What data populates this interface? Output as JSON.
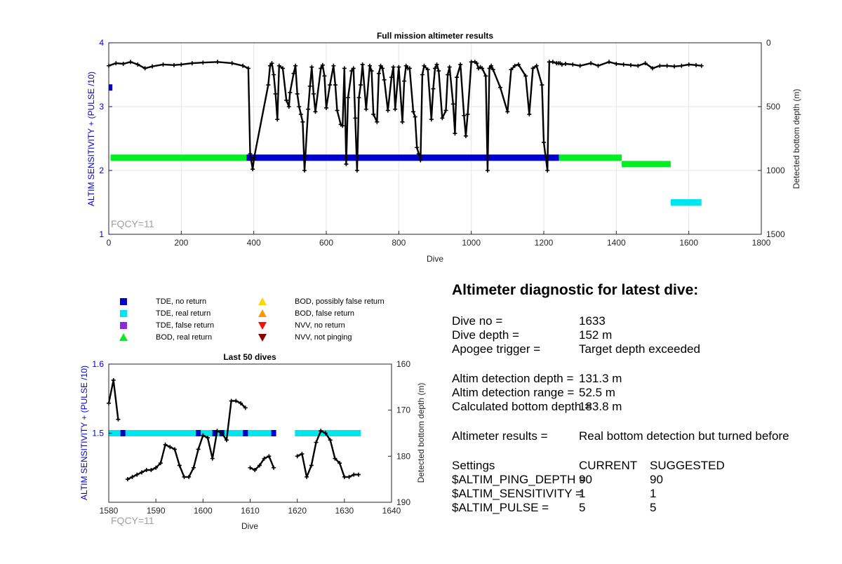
{
  "chart_data": [
    {
      "type": "scatter",
      "title": "Full mission altimeter results",
      "xlabel": "Dive",
      "ylabel_left": "ALTIM SENSITIVITY + (PULSE /10)",
      "ylabel_right": "Detected bottom depth (m)",
      "xlim": [
        0,
        1800
      ],
      "ylim_left": [
        1,
        4
      ],
      "ylim_right": [
        1500,
        0
      ],
      "y_right_reversed": true,
      "xticks": [
        "0",
        "200",
        "400",
        "600",
        "800",
        "1000",
        "1200",
        "1400",
        "1600",
        "1800"
      ],
      "yticks_left": [
        "1",
        "2",
        "3",
        "4"
      ],
      "yticks_right": [
        "0",
        "500",
        "1000",
        "1500"
      ],
      "grid": true,
      "annotation": "FQCY=11",
      "setting_segments": [
        {
          "x0": 0,
          "x1": 10,
          "y": 3.3,
          "kind": "tde_no"
        },
        {
          "x0": 5,
          "x1": 380,
          "y": 2.2,
          "kind": "bod_real"
        },
        {
          "x0": 380,
          "x1": 1242,
          "y": 2.2,
          "kind": "tde_no"
        },
        {
          "x0": 1242,
          "x1": 1415,
          "y": 2.2,
          "kind": "bod_real"
        },
        {
          "x0": 1415,
          "x1": 1550,
          "y": 2.1,
          "kind": "bod_real"
        },
        {
          "x0": 1550,
          "x1": 1635,
          "y": 1.5,
          "kind": "tde_real"
        }
      ],
      "bottom_depth": {
        "x": [
          0,
          20,
          40,
          60,
          80,
          100,
          120,
          150,
          180,
          200,
          230,
          260,
          300,
          340,
          370,
          385,
          390,
          393,
          397,
          401,
          440,
          445,
          450,
          455,
          460,
          465,
          470,
          480,
          490,
          497,
          500,
          510,
          515,
          520,
          525,
          530,
          535,
          540,
          550,
          555,
          560,
          565,
          570,
          585,
          590,
          595,
          600,
          610,
          620,
          625,
          630,
          640,
          645,
          650,
          655,
          660,
          670,
          675,
          680,
          685,
          690,
          695,
          700,
          710,
          720,
          725,
          730,
          740,
          745,
          750,
          755,
          760,
          770,
          780,
          785,
          790,
          800,
          810,
          815,
          820,
          825,
          830,
          840,
          845,
          850,
          855,
          860,
          865,
          870,
          880,
          890,
          895,
          900,
          905,
          910,
          920,
          930,
          935,
          940,
          950,
          955,
          960,
          970,
          980,
          985,
          990,
          1000,
          1010,
          1015,
          1020,
          1025,
          1030,
          1040,
          1045,
          1050,
          1055,
          1060,
          1080,
          1100,
          1110,
          1120,
          1130,
          1150,
          1160,
          1170,
          1180,
          1195,
          1200,
          1210,
          1215,
          1225,
          1235,
          1240,
          1245,
          1250,
          1260,
          1280,
          1300,
          1330,
          1350,
          1380,
          1400,
          1420,
          1440,
          1460,
          1480,
          1500,
          1520,
          1540,
          1560,
          1580,
          1600,
          1620,
          1635
        ],
        "y": [
          180,
          160,
          165,
          150,
          170,
          200,
          185,
          170,
          175,
          170,
          160,
          155,
          150,
          160,
          180,
          200,
          870,
          920,
          990,
          900,
          330,
          180,
          160,
          250,
          400,
          600,
          180,
          200,
          450,
          500,
          390,
          240,
          180,
          400,
          500,
          560,
          620,
          1000,
          520,
          340,
          190,
          400,
          540,
          200,
          175,
          260,
          510,
          330,
          180,
          330,
          530,
          640,
          650,
          200,
          950,
          430,
          220,
          200,
          590,
          1000,
          430,
          330,
          170,
          520,
          180,
          220,
          560,
          620,
          240,
          180,
          200,
          290,
          530,
          270,
          190,
          520,
          190,
          620,
          300,
          180,
          200,
          200,
          540,
          580,
          820,
          870,
          920,
          250,
          180,
          210,
          600,
          360,
          200,
          170,
          220,
          590,
          530,
          250,
          190,
          480,
          710,
          270,
          170,
          570,
          730,
          560,
          150,
          150,
          160,
          200,
          190,
          200,
          260,
          1000,
          200,
          180,
          210,
          350,
          540,
          210,
          180,
          170,
          260,
          560,
          200,
          180,
          330,
          780,
          1000,
          150,
          150,
          160,
          160,
          160,
          170,
          165,
          170,
          180,
          160,
          180,
          150,
          165,
          170,
          175,
          180,
          160,
          200,
          180,
          180,
          185,
          180,
          170,
          175,
          180
        ]
      }
    },
    {
      "type": "scatter",
      "title": "Last 50 dives",
      "xlabel": "Dive",
      "ylabel_left": "ALTIM SENSITIVITY + (PULSE /10)",
      "ylabel_right": "Detected bottom depth (m)",
      "xlim": [
        1580,
        1640
      ],
      "ylim_left": [
        1.4,
        1.6
      ],
      "ylim_right": [
        190,
        160
      ],
      "y_right_reversed": true,
      "xticks": [
        "1580",
        "1590",
        "1600",
        "1610",
        "1620",
        "1630",
        "1640"
      ],
      "yticks_left": [
        "1.6",
        "1.5"
      ],
      "yticks_right": [
        "160",
        "170",
        "180",
        "190"
      ],
      "annotation": "FQCY=11",
      "setting_segments": [
        {
          "x0": 1580,
          "x1": 1615,
          "y": 1.5,
          "kind": "tde_real"
        },
        {
          "x0": 1619.5,
          "x1": 1633.5,
          "y": 1.5,
          "kind": "tde_real"
        }
      ],
      "setting_markers": {
        "x": [
          1583,
          1599,
          1602.5,
          1604,
          1609,
          1615
        ],
        "y": 1.5,
        "kind": "tde_no"
      },
      "bottom_depth_segments": [
        {
          "x": [
            1580,
            1581,
            1582
          ],
          "y": [
            168.5,
            163.5,
            172
          ]
        },
        {
          "x": [
            1584,
            1585,
            1586,
            1587,
            1588,
            1589,
            1590,
            1591,
            1592,
            1593,
            1594,
            1595,
            1596,
            1597,
            1598,
            1599,
            1600,
            1601,
            1602,
            1603,
            1604,
            1605,
            1606,
            1607,
            1608,
            1609
          ],
          "y": [
            185,
            184.5,
            184,
            183.5,
            183,
            183,
            182.5,
            181.5,
            177.5,
            178,
            178.5,
            182,
            184.5,
            184.5,
            182.5,
            178.5,
            175.5,
            176,
            180.5,
            174.5,
            175,
            176.5,
            168,
            168,
            168.5,
            169.5
          ]
        },
        {
          "x": [
            1610,
            1611,
            1612,
            1613,
            1614,
            1615
          ],
          "y": [
            182.5,
            183,
            182,
            180.5,
            180,
            182.5
          ]
        },
        {
          "x": [
            1620,
            1621,
            1622,
            1623,
            1624,
            1625,
            1626,
            1627,
            1628,
            1629,
            1630,
            1631,
            1632,
            1633
          ],
          "y": [
            180,
            179.5,
            184.5,
            182,
            177,
            174.5,
            175,
            176.5,
            180.5,
            181.5,
            184.5,
            184.5,
            184,
            184
          ]
        }
      ]
    }
  ],
  "legend": {
    "items": [
      {
        "label": "TDE, no return",
        "shape": "square",
        "color": "#0000cc"
      },
      {
        "label": "TDE, real return",
        "shape": "square",
        "color": "#00e5ee"
      },
      {
        "label": "TDE, false return",
        "shape": "square",
        "color": "#8a2be2"
      },
      {
        "label": "BOD, real return",
        "shape": "triangle-up",
        "color": "#00ee22"
      },
      {
        "label": "BOD, possibly false return",
        "shape": "triangle-up",
        "color": "#ffd700"
      },
      {
        "label": "BOD, false return",
        "shape": "triangle-up",
        "color": "#ff9900"
      },
      {
        "label": "NVV, no return",
        "shape": "triangle-down",
        "color": "#ee1111"
      },
      {
        "label": "NVV, not pinging",
        "shape": "triangle-down",
        "color": "#8b0000"
      }
    ]
  },
  "diagnostic": {
    "title": "Altimeter diagnostic for latest dive:",
    "dive_no_label": "Dive no =",
    "dive_no_value": "1633",
    "dive_depth_label": "Dive depth =",
    "dive_depth_value": "152 m",
    "apogee_label": "Apogee trigger =",
    "apogee_value": "Target depth exceeded",
    "det_depth_label": "Altim detection depth =",
    "det_depth_value": "131.3 m",
    "det_range_label": "Altim detection range =",
    "det_range_value": "52.5 m",
    "calc_depth_label": "Calculated bottom depth =",
    "calc_depth_value": "183.8 m",
    "results_label": "Altimeter results =",
    "results_value": "Real bottom detection but turned before",
    "settings_label": "Settings",
    "current_label": "CURRENT",
    "suggested_label": "SUGGESTED",
    "ping_label": "$ALTIM_PING_DEPTH =",
    "ping_current": "90",
    "ping_suggested": "90",
    "sens_label": "$ALTIM_SENSITIVITY =",
    "sens_current": "1",
    "sens_suggested": "1",
    "pulse_label": "$ALTIM_PULSE =",
    "pulse_current": "5",
    "pulse_suggested": "5"
  },
  "colors": {
    "tde_no": "#0000cc",
    "tde_real": "#00e5ee",
    "bod_real": "#00ee22",
    "nvv_no": "#ee1111",
    "bod_false": "#ff9900",
    "left_axis": "#0000cc"
  }
}
